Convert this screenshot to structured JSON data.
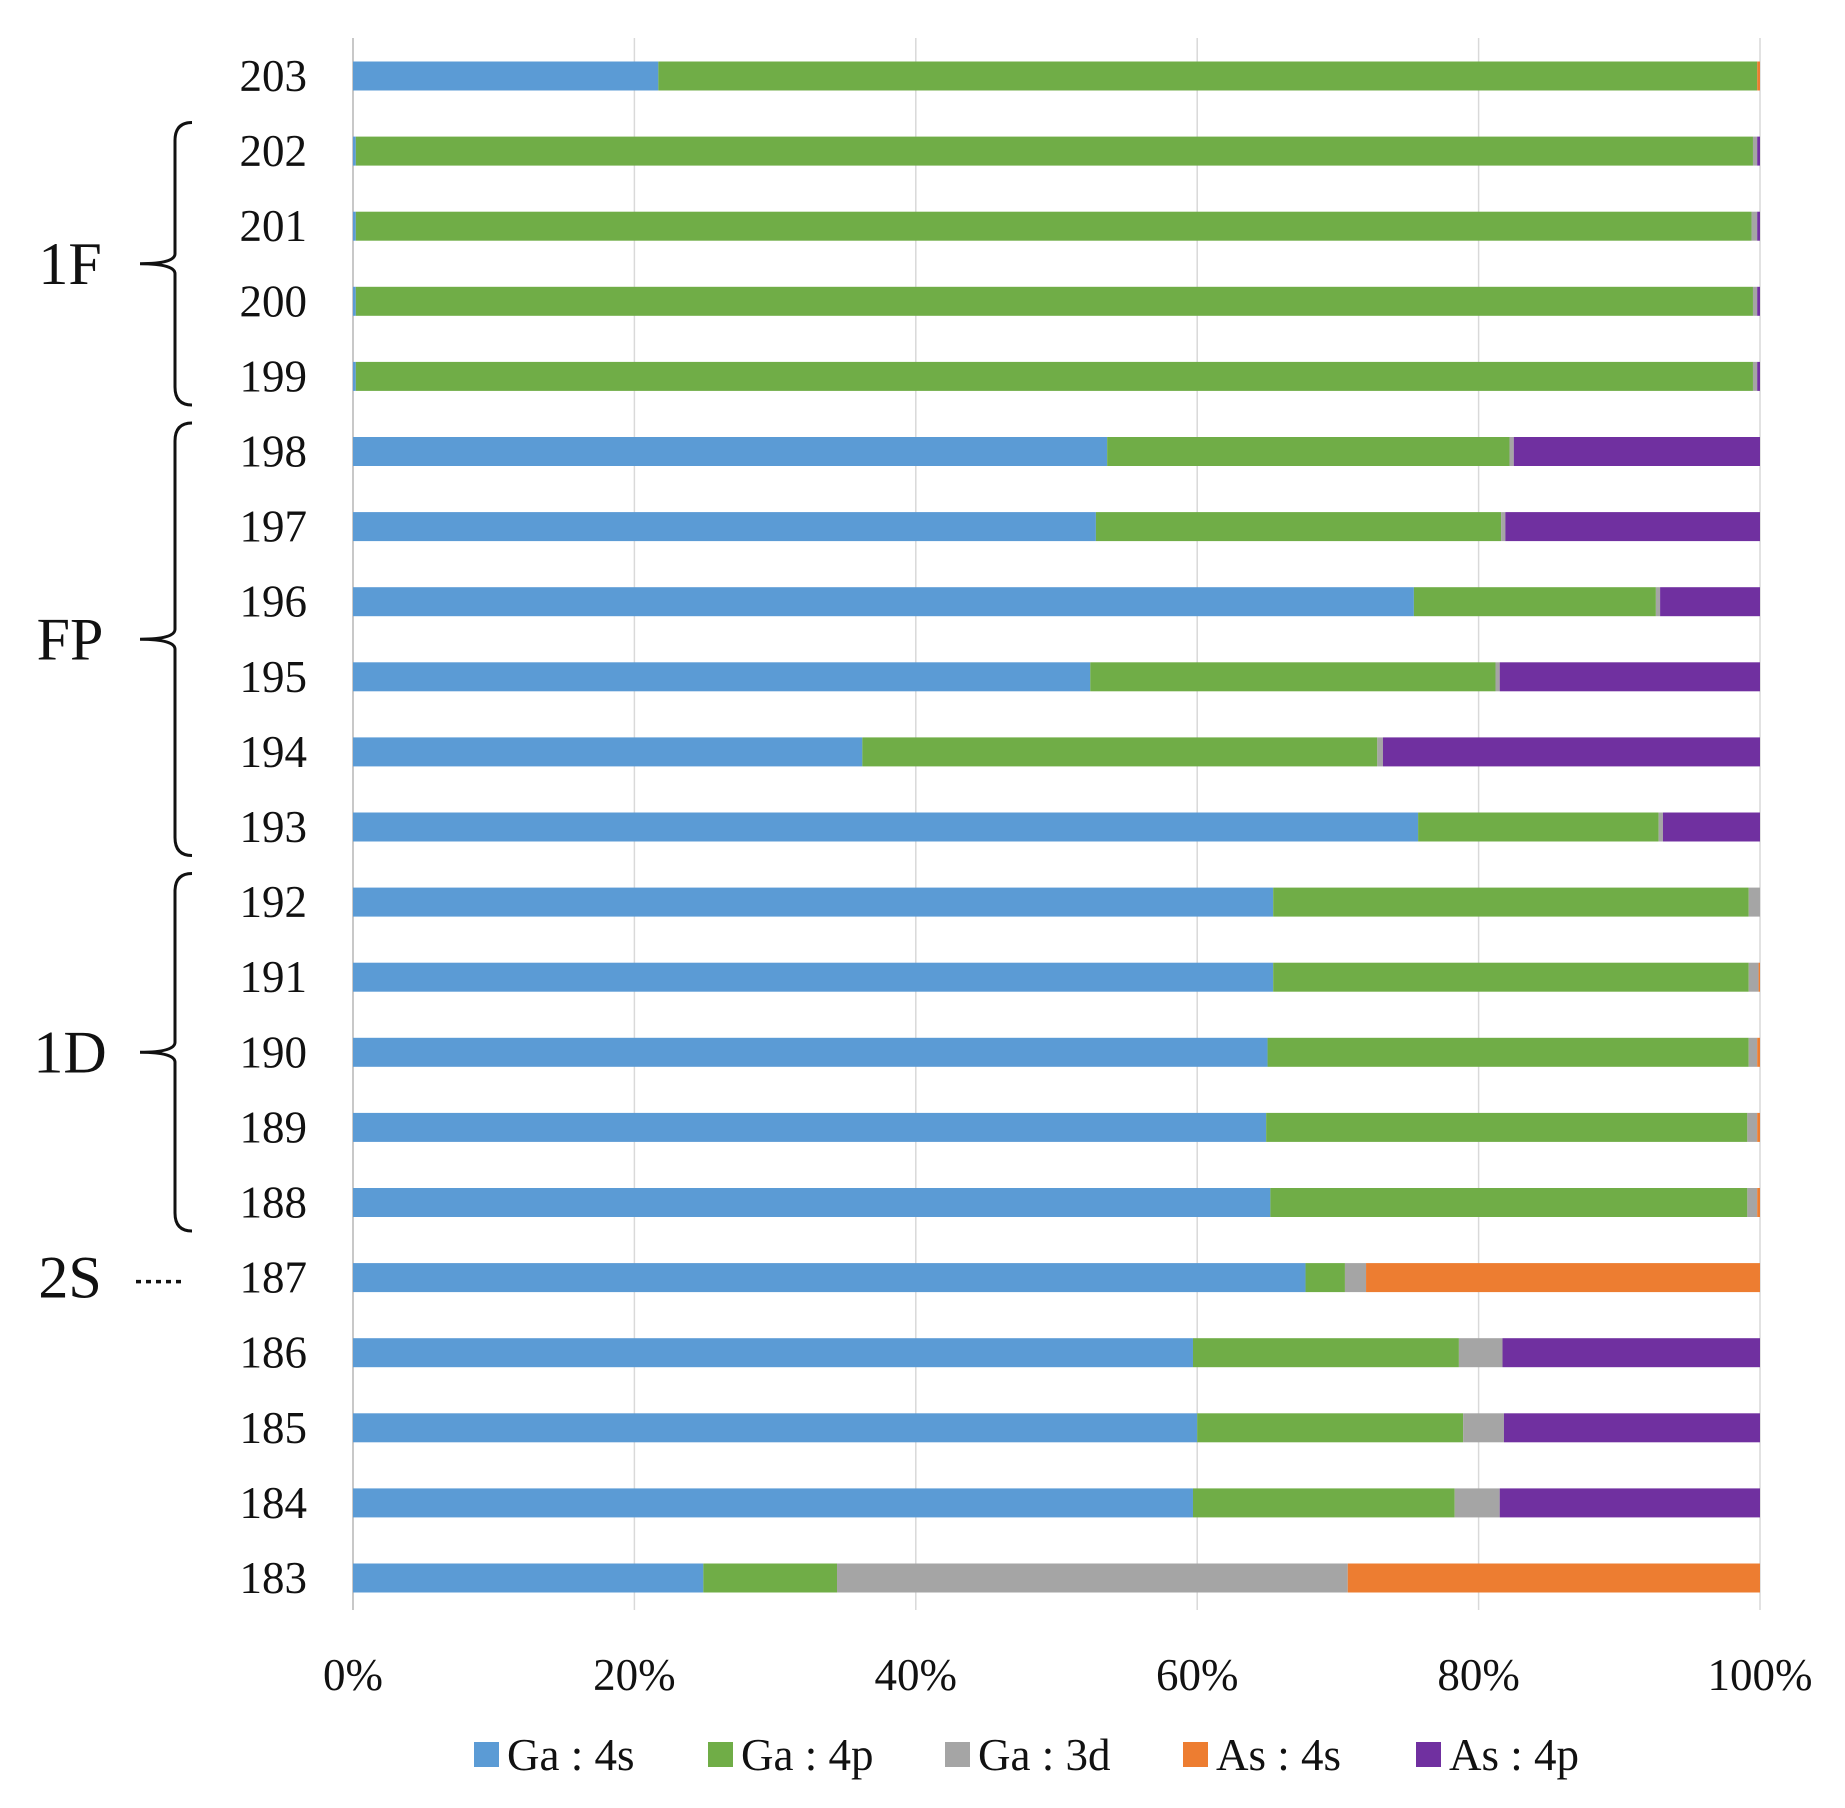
{
  "chart_data": {
    "type": "bar",
    "orientation": "horizontal",
    "stacked": true,
    "normalized": true,
    "title": "",
    "xlabel": "",
    "ylabel": "",
    "xlim": [
      0,
      100
    ],
    "x_ticks": [
      "0%",
      "20%",
      "40%",
      "60%",
      "80%",
      "100%"
    ],
    "grid": true,
    "legend_position": "bottom",
    "categories": [
      "203",
      "202",
      "201",
      "200",
      "199",
      "198",
      "197",
      "196",
      "195",
      "194",
      "193",
      "192",
      "191",
      "190",
      "189",
      "188",
      "187",
      "186",
      "185",
      "184",
      "183"
    ],
    "series": [
      {
        "name": "Ga : 4s",
        "color": "#5B9BD5",
        "values": [
          21.7,
          0.2,
          0.2,
          0.2,
          0.2,
          53.6,
          52.8,
          75.4,
          52.4,
          36.2,
          75.7,
          65.4,
          65.4,
          65.0,
          64.9,
          65.2,
          67.7,
          59.7,
          60.0,
          59.7,
          24.9
        ]
      },
      {
        "name": "Ga : 4p",
        "color": "#70AD47",
        "values": [
          78.1,
          99.3,
          99.2,
          99.3,
          99.3,
          28.6,
          28.8,
          17.2,
          28.8,
          36.6,
          17.1,
          33.8,
          33.8,
          34.2,
          34.2,
          33.9,
          2.8,
          18.9,
          18.9,
          18.6,
          9.5
        ]
      },
      {
        "name": "Ga : 3d",
        "color": "#A5A5A5",
        "values": [
          0.0,
          0.3,
          0.4,
          0.3,
          0.3,
          0.3,
          0.3,
          0.3,
          0.3,
          0.4,
          0.3,
          0.8,
          0.7,
          0.6,
          0.7,
          0.7,
          1.5,
          3.1,
          2.9,
          3.2,
          36.3
        ]
      },
      {
        "name": "As : 4s",
        "color": "#ED7D31",
        "values": [
          0.2,
          0.0,
          0.0,
          0.0,
          0.0,
          0.0,
          0.0,
          0.0,
          0.0,
          0.0,
          0.0,
          0.0,
          0.1,
          0.2,
          0.2,
          0.2,
          28.0,
          0.0,
          0.0,
          0.0,
          29.3
        ]
      },
      {
        "name": "As : 4p",
        "color": "#7030A0",
        "values": [
          0.0,
          0.2,
          0.2,
          0.2,
          0.2,
          17.5,
          18.1,
          7.1,
          18.5,
          26.8,
          6.9,
          0.0,
          0.0,
          0.0,
          0.0,
          0.0,
          0.0,
          18.3,
          18.2,
          18.5,
          0.0
        ]
      }
    ],
    "groups": [
      {
        "label": "1F",
        "from": "202",
        "to": "199",
        "style": "brace"
      },
      {
        "label": "FP",
        "from": "198",
        "to": "193",
        "style": "brace"
      },
      {
        "label": "1D",
        "from": "192",
        "to": "188",
        "style": "brace"
      },
      {
        "label": "2S",
        "from": "187",
        "to": "187",
        "style": "dots"
      }
    ]
  }
}
